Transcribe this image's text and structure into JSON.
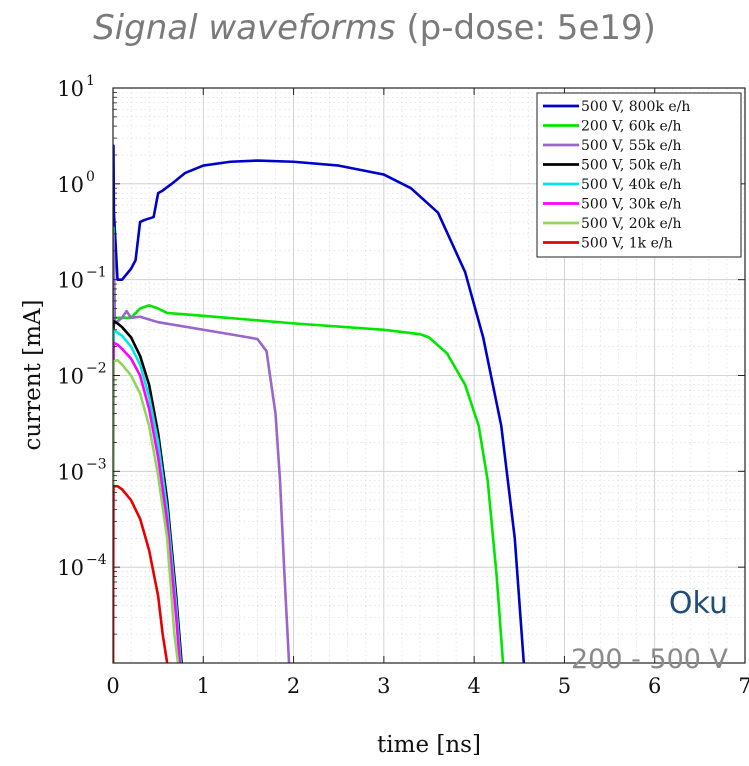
{
  "title": {
    "italic": "Signal waveforms",
    "rest": " (p-dose: 5e19)"
  },
  "annotations": {
    "model": "Oku",
    "voltage_range": "200 - 500 V"
  },
  "chart_data": {
    "type": "line",
    "xlabel": "time [ns]",
    "ylabel": "current [mA]",
    "xlim": [
      0,
      7
    ],
    "ylim": [
      1e-05,
      10
    ],
    "yscale": "log",
    "grid": true,
    "legend_position": "top-right",
    "x_ticks": [
      "0",
      "1",
      "2",
      "3",
      "4",
      "5",
      "6",
      "7"
    ],
    "y_ticks": [
      {
        "base": "10",
        "exp": "1"
      },
      {
        "base": "10",
        "exp": "0"
      },
      {
        "base": "10",
        "exp": "−1"
      },
      {
        "base": "10",
        "exp": "−2"
      },
      {
        "base": "10",
        "exp": "−3"
      },
      {
        "base": "10",
        "exp": "−4"
      }
    ],
    "series": [
      {
        "name": "500 V, 800k e/h",
        "color": "#0000cc",
        "points": [
          [
            0,
            1e-05
          ],
          [
            0.005,
            2.5
          ],
          [
            0.01,
            0.5
          ],
          [
            0.05,
            0.1
          ],
          [
            0.1,
            0.1
          ],
          [
            0.2,
            0.13
          ],
          [
            0.25,
            0.16
          ],
          [
            0.3,
            0.4
          ],
          [
            0.35,
            0.42
          ],
          [
            0.45,
            0.45
          ],
          [
            0.5,
            0.8
          ],
          [
            0.55,
            0.85
          ],
          [
            0.65,
            1.0
          ],
          [
            0.8,
            1.3
          ],
          [
            1.0,
            1.55
          ],
          [
            1.3,
            1.7
          ],
          [
            1.6,
            1.75
          ],
          [
            2.0,
            1.7
          ],
          [
            2.5,
            1.55
          ],
          [
            3.0,
            1.25
          ],
          [
            3.3,
            0.9
          ],
          [
            3.6,
            0.5
          ],
          [
            3.9,
            0.12
          ],
          [
            4.1,
            0.025
          ],
          [
            4.3,
            0.003
          ],
          [
            4.45,
            0.0002
          ],
          [
            4.55,
            1e-05
          ]
        ]
      },
      {
        "name": "200 V, 60k e/h",
        "color": "#00e600",
        "points": [
          [
            0,
            1e-05
          ],
          [
            0.005,
            0.35
          ],
          [
            0.02,
            0.04
          ],
          [
            0.2,
            0.04
          ],
          [
            0.3,
            0.05
          ],
          [
            0.4,
            0.054
          ],
          [
            0.5,
            0.05
          ],
          [
            0.6,
            0.045
          ],
          [
            1.0,
            0.042
          ],
          [
            2.0,
            0.035
          ],
          [
            3.0,
            0.03
          ],
          [
            3.4,
            0.027
          ],
          [
            3.5,
            0.025
          ],
          [
            3.7,
            0.017
          ],
          [
            3.9,
            0.008
          ],
          [
            4.05,
            0.003
          ],
          [
            4.15,
            0.0008
          ],
          [
            4.25,
            8e-05
          ],
          [
            4.32,
            1e-05
          ]
        ]
      },
      {
        "name": "500 V, 55k e/h",
        "color": "#9966cc",
        "points": [
          [
            0,
            1e-05
          ],
          [
            0.005,
            0.3
          ],
          [
            0.02,
            0.035
          ],
          [
            0.1,
            0.04
          ],
          [
            0.15,
            0.047
          ],
          [
            0.2,
            0.04
          ],
          [
            0.3,
            0.041
          ],
          [
            0.5,
            0.036
          ],
          [
            1.0,
            0.03
          ],
          [
            1.5,
            0.025
          ],
          [
            1.6,
            0.024
          ],
          [
            1.7,
            0.018
          ],
          [
            1.8,
            0.004
          ],
          [
            1.85,
            0.0008
          ],
          [
            1.9,
            8e-05
          ],
          [
            1.95,
            1e-05
          ]
        ]
      },
      {
        "name": "500 V, 50k e/h",
        "color": "#000000",
        "points": [
          [
            0,
            1e-05
          ],
          [
            0.005,
            0.037
          ],
          [
            0.05,
            0.035
          ],
          [
            0.1,
            0.032
          ],
          [
            0.2,
            0.025
          ],
          [
            0.3,
            0.016
          ],
          [
            0.4,
            0.008
          ],
          [
            0.5,
            0.0025
          ],
          [
            0.6,
            0.0005
          ],
          [
            0.7,
            5e-05
          ],
          [
            0.76,
            1e-05
          ]
        ]
      },
      {
        "name": "500 V, 40k e/h",
        "color": "#00e6e6",
        "points": [
          [
            0,
            1e-05
          ],
          [
            0.005,
            0.03
          ],
          [
            0.05,
            0.028
          ],
          [
            0.1,
            0.026
          ],
          [
            0.2,
            0.02
          ],
          [
            0.3,
            0.013
          ],
          [
            0.4,
            0.006
          ],
          [
            0.5,
            0.002
          ],
          [
            0.6,
            0.0004
          ],
          [
            0.7,
            4e-05
          ],
          [
            0.75,
            1e-05
          ]
        ]
      },
      {
        "name": "500 V, 30k e/h",
        "color": "#ff00ff",
        "points": [
          [
            0,
            1e-05
          ],
          [
            0.005,
            0.022
          ],
          [
            0.05,
            0.021
          ],
          [
            0.1,
            0.019
          ],
          [
            0.2,
            0.015
          ],
          [
            0.3,
            0.01
          ],
          [
            0.4,
            0.0045
          ],
          [
            0.5,
            0.0014
          ],
          [
            0.6,
            0.0003
          ],
          [
            0.7,
            3e-05
          ],
          [
            0.74,
            1e-05
          ]
        ]
      },
      {
        "name": "500 V, 20k e/h",
        "color": "#8fd65e",
        "points": [
          [
            0,
            1e-05
          ],
          [
            0.005,
            0.014
          ],
          [
            0.05,
            0.0145
          ],
          [
            0.1,
            0.013
          ],
          [
            0.2,
            0.01
          ],
          [
            0.3,
            0.0065
          ],
          [
            0.4,
            0.003
          ],
          [
            0.5,
            0.0009
          ],
          [
            0.6,
            0.0002
          ],
          [
            0.68,
            2e-05
          ],
          [
            0.72,
            1e-05
          ]
        ]
      },
      {
        "name": "500 V, 1k e/h",
        "color": "#e60000",
        "points": [
          [
            0,
            1e-05
          ],
          [
            0.005,
            0.0007
          ],
          [
            0.05,
            0.0007
          ],
          [
            0.1,
            0.00065
          ],
          [
            0.2,
            0.0005
          ],
          [
            0.3,
            0.00032
          ],
          [
            0.4,
            0.00015
          ],
          [
            0.5,
            5e-05
          ],
          [
            0.55,
            2e-05
          ],
          [
            0.6,
            1e-05
          ]
        ]
      }
    ]
  }
}
